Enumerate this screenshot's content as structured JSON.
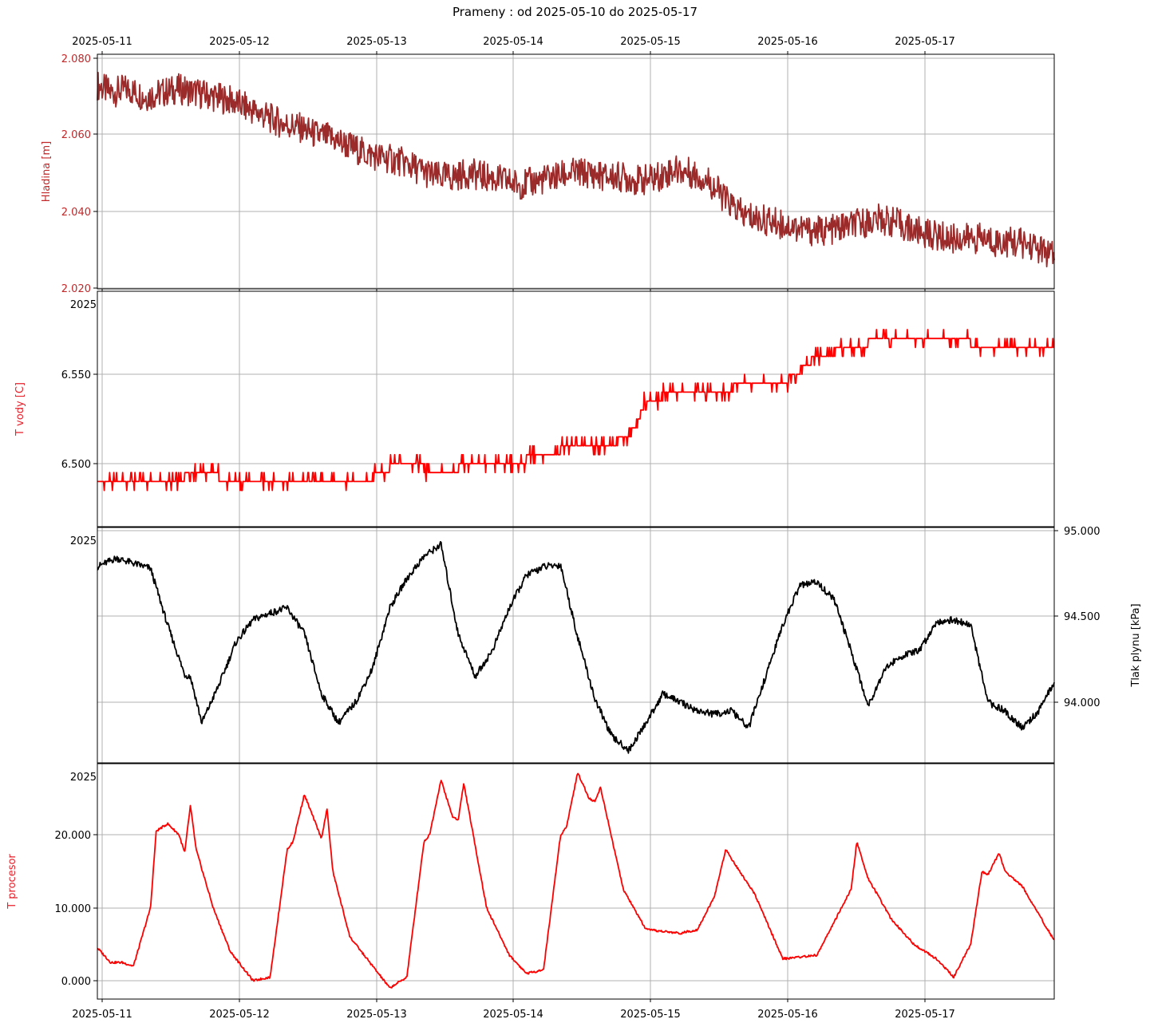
{
  "title": "Prameny : od 2025-05-10 do 2025-05-17",
  "x_tick_labels": [
    "2025-05-11",
    "2025-05-12",
    "2025-05-13",
    "2025-05-14",
    "2025-05-15",
    "2025-05-16",
    "2025-05-17"
  ],
  "chart_data": [
    {
      "type": "line",
      "panel": 1,
      "ylabel": "Hladina [m]",
      "ylabel_color": "#c0282a",
      "color": "#9b2a2a",
      "ylim": [
        2.019,
        2.081
      ],
      "yticks": [
        "2.080",
        "2.060",
        "2.040",
        "2.020"
      ],
      "tick_side": "left",
      "x_range": [
        "2025-05-10T23:40",
        "2025-05-17T23:40"
      ],
      "grid": true,
      "series": [
        {
          "x": [
            "2025-05-10T23:40",
            "2025-05-11T02:00",
            "2025-05-11T05:00",
            "2025-05-11T08:00",
            "2025-05-11T11:00",
            "2025-05-11T14:00",
            "2025-05-11T17:00",
            "2025-05-11T20:00",
            "2025-05-11T23:00",
            "2025-05-12T02:00",
            "2025-05-12T05:00",
            "2025-05-12T08:00",
            "2025-05-12T11:00",
            "2025-05-12T14:00",
            "2025-05-12T17:00",
            "2025-05-12T20:00",
            "2025-05-12T23:00",
            "2025-05-13T02:00",
            "2025-05-13T05:00",
            "2025-05-13T08:00",
            "2025-05-13T11:00",
            "2025-05-13T14:00",
            "2025-05-13T17:00",
            "2025-05-13T20:00",
            "2025-05-13T23:00",
            "2025-05-14T02:00",
            "2025-05-14T05:00",
            "2025-05-14T08:00",
            "2025-05-14T11:00",
            "2025-05-14T14:00",
            "2025-05-14T17:00",
            "2025-05-14T20:00",
            "2025-05-14T23:00",
            "2025-05-15T02:00",
            "2025-05-15T05:00",
            "2025-05-15T08:00",
            "2025-05-15T11:00",
            "2025-05-15T14:00",
            "2025-05-15T17:00",
            "2025-05-15T20:00",
            "2025-05-15T23:00",
            "2025-05-16T02:00",
            "2025-05-16T05:00",
            "2025-05-16T08:00",
            "2025-05-16T11:00",
            "2025-05-16T14:00",
            "2025-05-16T17:00",
            "2025-05-16T20:00",
            "2025-05-16T23:00",
            "2025-05-17T02:00",
            "2025-05-17T05:00",
            "2025-05-17T08:00",
            "2025-05-17T11:00",
            "2025-05-17T14:00",
            "2025-05-17T17:00",
            "2025-05-17T20:00",
            "2025-05-17T23:40"
          ],
          "values": [
            2.073,
            2.071,
            2.072,
            2.07,
            2.071,
            2.072,
            2.071,
            2.07,
            2.069,
            2.067,
            2.065,
            2.063,
            2.062,
            2.06,
            2.059,
            2.057,
            2.055,
            2.054,
            2.053,
            2.051,
            2.049,
            2.049,
            2.05,
            2.049,
            2.048,
            2.047,
            2.048,
            2.049,
            2.05,
            2.05,
            2.049,
            2.049,
            2.048,
            2.049,
            2.051,
            2.05,
            2.048,
            2.043,
            2.039,
            2.038,
            2.037,
            2.036,
            2.035,
            2.035,
            2.036,
            2.037,
            2.038,
            2.037,
            2.035,
            2.034,
            2.033,
            2.033,
            2.033,
            2.032,
            2.032,
            2.031,
            2.028
          ],
          "noise_amplitude": 0.004
        }
      ]
    },
    {
      "type": "line",
      "panel": 2,
      "ylabel": "T vody [C]",
      "ylabel_color": "#e8202a",
      "color": "#ff0000",
      "ylim": [
        2025,
        6.5785
      ],
      "yticks": [
        "6.550",
        "6.500"
      ],
      "tick_side": "left",
      "corner_label": "2025",
      "x_range": [
        "2025-05-10T23:40",
        "2025-05-17T23:40"
      ],
      "grid": true,
      "series": [
        {
          "x": [
            "2025-05-10T23:40",
            "2025-05-11T06:00",
            "2025-05-11T12:00",
            "2025-05-11T18:00",
            "2025-05-12T00:00",
            "2025-05-12T06:00",
            "2025-05-12T12:00",
            "2025-05-12T18:00",
            "2025-05-12T23:50",
            "2025-05-13T00:00",
            "2025-05-13T06:00",
            "2025-05-13T12:00",
            "2025-05-13T18:00",
            "2025-05-14T00:00",
            "2025-05-14T06:00",
            "2025-05-14T12:00",
            "2025-05-14T18:00",
            "2025-05-14T22:00",
            "2025-05-15T00:00",
            "2025-05-15T06:00",
            "2025-05-15T12:00",
            "2025-05-15T18:00",
            "2025-05-16T00:00",
            "2025-05-16T06:00",
            "2025-05-16T12:00",
            "2025-05-16T18:00",
            "2025-05-17T00:00",
            "2025-05-17T06:00",
            "2025-05-17T12:00",
            "2025-05-17T23:40"
          ],
          "values": [
            6.49,
            6.49,
            6.49,
            6.495,
            6.49,
            6.49,
            6.49,
            6.49,
            6.49,
            6.495,
            6.5,
            6.495,
            6.5,
            6.5,
            6.505,
            6.51,
            6.51,
            6.52,
            6.535,
            6.54,
            6.54,
            6.545,
            6.545,
            6.56,
            6.565,
            6.57,
            6.57,
            6.57,
            6.565,
            6.565
          ],
          "noise_amplitude": 0.005
        }
      ]
    },
    {
      "type": "line",
      "panel": 3,
      "ylabel": "Tlak plynu [kPa]",
      "ylabel_color": "#000000",
      "color": "#000000",
      "ylim": [
        93.64,
        95.0
      ],
      "yticks": [
        "95.000",
        "94.500",
        "94.000"
      ],
      "tick_side": "right",
      "corner_label": "2025",
      "x_range": [
        "2025-05-10T23:40",
        "2025-05-17T23:40"
      ],
      "grid": true,
      "series": [
        {
          "x": [
            "2025-05-10T23:40",
            "2025-05-11T03:00",
            "2025-05-11T06:00",
            "2025-05-11T09:00",
            "2025-05-11T12:00",
            "2025-05-11T15:00",
            "2025-05-11T16:00",
            "2025-05-11T18:00",
            "2025-05-11T21:00",
            "2025-05-12T00:00",
            "2025-05-12T03:00",
            "2025-05-12T06:00",
            "2025-05-12T09:00",
            "2025-05-12T12:00",
            "2025-05-12T15:00",
            "2025-05-12T18:00",
            "2025-05-12T21:00",
            "2025-05-13T00:00",
            "2025-05-13T03:00",
            "2025-05-13T06:00",
            "2025-05-13T09:00",
            "2025-05-13T12:00",
            "2025-05-13T15:00",
            "2025-05-13T18:00",
            "2025-05-13T21:00",
            "2025-05-14T00:00",
            "2025-05-14T03:00",
            "2025-05-14T06:00",
            "2025-05-14T09:00",
            "2025-05-14T12:00",
            "2025-05-14T15:00",
            "2025-05-14T18:00",
            "2025-05-14T21:00",
            "2025-05-15T00:00",
            "2025-05-15T03:00",
            "2025-05-15T06:00",
            "2025-05-15T09:00",
            "2025-05-15T12:00",
            "2025-05-15T15:00",
            "2025-05-15T18:00",
            "2025-05-15T21:00",
            "2025-05-16T00:00",
            "2025-05-16T03:00",
            "2025-05-16T06:00",
            "2025-05-16T09:00",
            "2025-05-16T12:00",
            "2025-05-16T15:00",
            "2025-05-16T18:00",
            "2025-05-16T21:00",
            "2025-05-17T00:00",
            "2025-05-17T03:00",
            "2025-05-17T06:00",
            "2025-05-17T09:00",
            "2025-05-17T12:00",
            "2025-05-17T15:00",
            "2025-05-17T18:00",
            "2025-05-17T21:00",
            "2025-05-17T23:40"
          ],
          "values": [
            94.79,
            94.84,
            94.81,
            94.78,
            94.45,
            94.16,
            94.15,
            93.88,
            94.1,
            94.35,
            94.48,
            94.52,
            94.55,
            94.4,
            94.05,
            93.88,
            94.0,
            94.2,
            94.55,
            94.72,
            94.85,
            94.92,
            94.4,
            94.15,
            94.3,
            94.55,
            94.74,
            94.79,
            94.8,
            94.38,
            94.02,
            93.8,
            93.72,
            93.88,
            94.05,
            94.0,
            93.95,
            93.93,
            93.95,
            93.85,
            94.15,
            94.45,
            94.68,
            94.7,
            94.6,
            94.3,
            93.98,
            94.2,
            94.27,
            94.3,
            94.47,
            94.48,
            94.45,
            94.0,
            93.95,
            93.85,
            93.95,
            94.12
          ],
          "noise_amplitude": 0.02
        }
      ]
    },
    {
      "type": "line",
      "panel": 4,
      "ylabel": "T procesor",
      "ylabel_color": "#e8202a",
      "color": "#ff0000",
      "ylim": [
        -2,
        2025
      ],
      "yticks": [
        "20.000",
        "10.000",
        "0.000"
      ],
      "tick_side": "left",
      "corner_label": "2025",
      "x_range": [
        "2025-05-10T23:40",
        "2025-05-17T23:40"
      ],
      "grid": true,
      "series": [
        {
          "x": [
            "2025-05-10T23:40",
            "2025-05-11T02:00",
            "2025-05-11T04:00",
            "2025-05-11T06:00",
            "2025-05-11T09:00",
            "2025-05-11T10:00",
            "2025-05-11T12:00",
            "2025-05-11T14:00",
            "2025-05-11T15:00",
            "2025-05-11T16:00",
            "2025-05-11T17:00",
            "2025-05-11T20:00",
            "2025-05-11T23:00",
            "2025-05-12T03:00",
            "2025-05-12T06:00",
            "2025-05-12T09:00",
            "2025-05-12T10:00",
            "2025-05-12T12:00",
            "2025-05-12T14:00",
            "2025-05-12T15:00",
            "2025-05-12T16:00",
            "2025-05-12T17:00",
            "2025-05-12T20:00",
            "2025-05-13T00:00",
            "2025-05-13T03:00",
            "2025-05-13T06:00",
            "2025-05-13T09:00",
            "2025-05-13T10:00",
            "2025-05-13T12:00",
            "2025-05-13T14:00",
            "2025-05-13T15:00",
            "2025-05-13T16:00",
            "2025-05-13T20:00",
            "2025-05-14T00:00",
            "2025-05-14T03:00",
            "2025-05-14T06:00",
            "2025-05-14T09:00",
            "2025-05-14T10:00",
            "2025-05-14T12:00",
            "2025-05-14T14:00",
            "2025-05-14T15:00",
            "2025-05-14T16:00",
            "2025-05-14T20:00",
            "2025-05-15T00:00",
            "2025-05-15T06:00",
            "2025-05-15T09:00",
            "2025-05-15T12:00",
            "2025-05-15T14:00",
            "2025-05-15T16:00",
            "2025-05-15T19:00",
            "2025-05-16T00:00",
            "2025-05-16T06:00",
            "2025-05-16T09:00",
            "2025-05-16T12:00",
            "2025-05-16T13:00",
            "2025-05-16T15:00",
            "2025-05-16T19:00",
            "2025-05-16T23:00",
            "2025-05-17T03:00",
            "2025-05-17T06:00",
            "2025-05-17T09:00",
            "2025-05-17T11:00",
            "2025-05-17T12:00",
            "2025-05-17T14:00",
            "2025-05-17T15:00",
            "2025-05-17T18:00",
            "2025-05-17T23:40"
          ],
          "values": [
            4.5,
            2.5,
            2.5,
            2.0,
            10.0,
            20.5,
            21.5,
            20.0,
            17.5,
            24.0,
            18.0,
            10.0,
            4.0,
            0.0,
            0.5,
            18.0,
            19.0,
            25.5,
            21.5,
            19.5,
            23.5,
            15.0,
            6.0,
            2.0,
            -1.0,
            0.5,
            19.0,
            20.0,
            27.5,
            22.5,
            22.0,
            27.0,
            10.0,
            3.5,
            1.0,
            1.5,
            20.0,
            21.0,
            28.5,
            25.0,
            24.5,
            26.5,
            12.5,
            7.0,
            6.5,
            7.0,
            11.5,
            18.0,
            15.5,
            12.0,
            3.0,
            3.5,
            8.0,
            12.5,
            19.0,
            14.0,
            8.5,
            5.0,
            3.0,
            0.5,
            5.0,
            15.0,
            14.5,
            17.5,
            15.0,
            13.0,
            5.5
          ],
          "noise_amplitude": 0.15
        }
      ]
    }
  ]
}
